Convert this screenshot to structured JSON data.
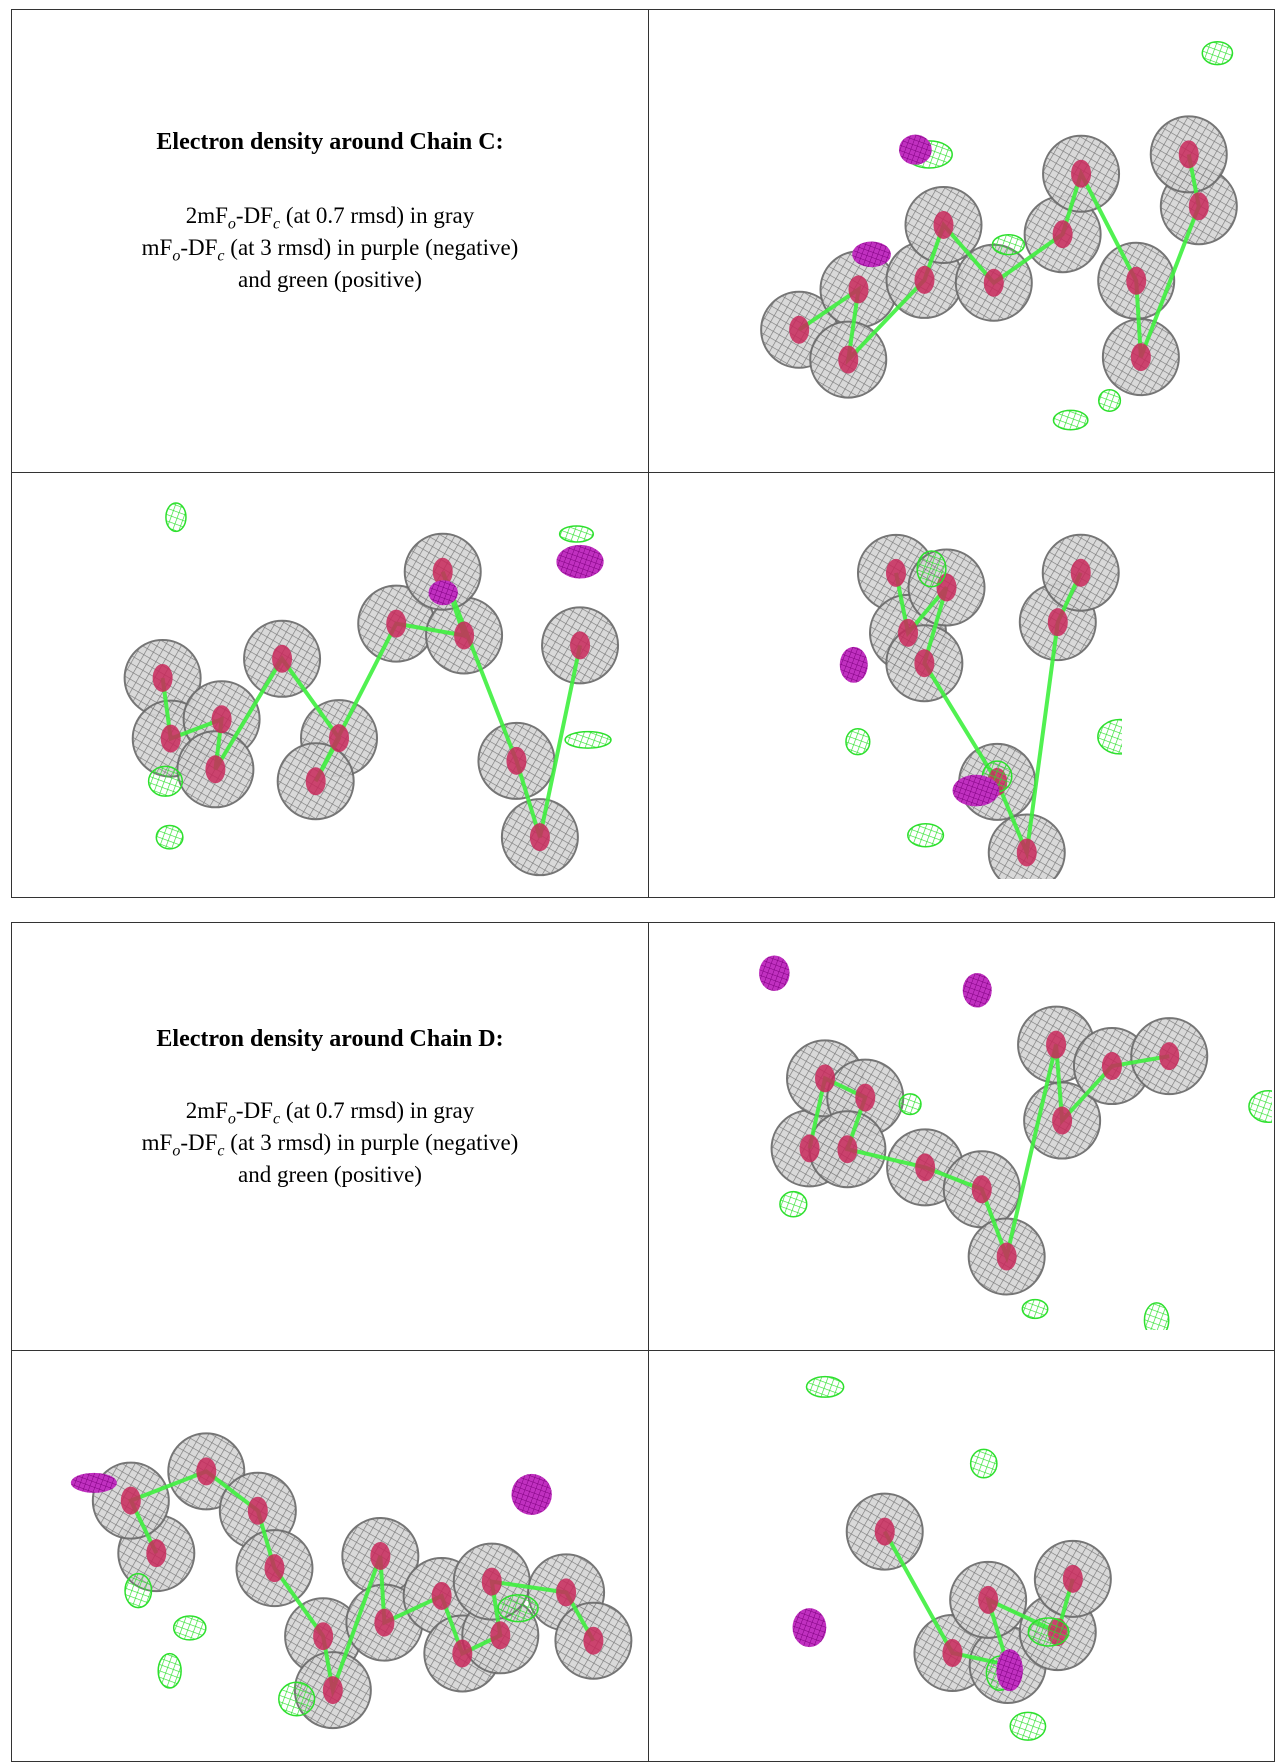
{
  "sections": [
    {
      "title": "Electron density around Chain C:",
      "caption": [
        [
          "2mF",
          "o",
          "-DF",
          "c",
          " (at 0.7 rmsd) in gray"
        ],
        [
          "mF",
          "o",
          "-DF",
          "c",
          " (at 3 rmsd) in purple (negative)"
        ],
        [
          "and green (positive)"
        ]
      ]
    },
    {
      "title": "Electron density around Chain D:",
      "caption": [
        [
          "2mF",
          "o",
          "-DF",
          "c",
          " (at 0.7 rmsd) in gray"
        ],
        [
          "mF",
          "o",
          "-DF",
          "c",
          " (at 3 rmsd) in purple (negative)"
        ],
        [
          "and green (positive)"
        ]
      ]
    }
  ]
}
